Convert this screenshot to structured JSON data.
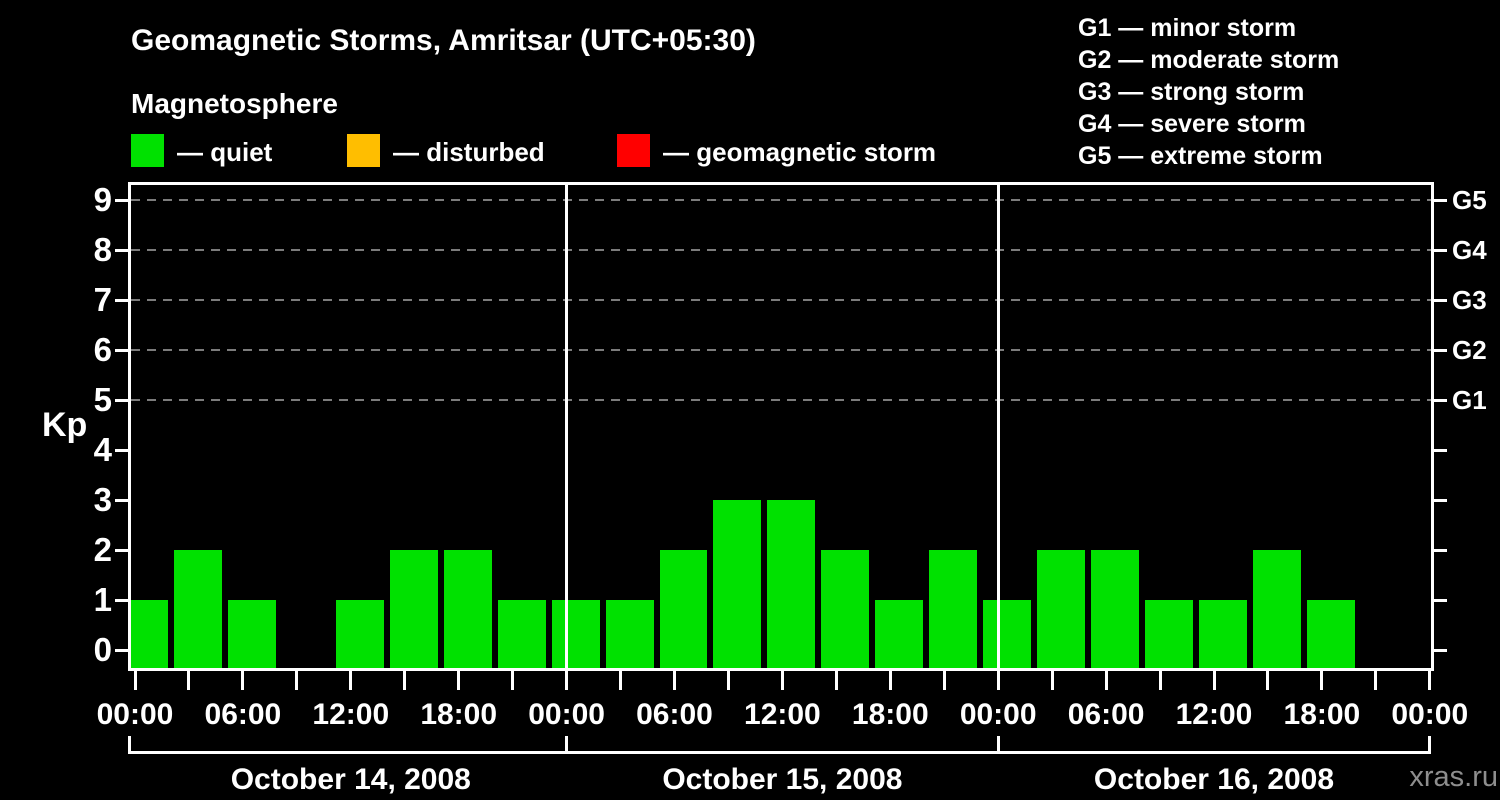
{
  "chart_data": {
    "type": "bar",
    "title": "Geomagnetic Storms, Amritsar (UTC+05:30)",
    "subtitle": "Magnetosphere",
    "ylabel": "Kp",
    "ylim": [
      0,
      9
    ],
    "x_range_hours": [
      0,
      72
    ],
    "x_minor_tick_hours": 3,
    "x_label_every_hours": 6,
    "x_tick_labels": [
      "00:00",
      "06:00",
      "12:00",
      "18:00",
      "00:00",
      "06:00",
      "12:00",
      "18:00",
      "00:00",
      "06:00",
      "12:00",
      "18:00",
      "00:00"
    ],
    "y_ticks": [
      0,
      1,
      2,
      3,
      4,
      5,
      6,
      7,
      8,
      9
    ],
    "grid_levels": [
      5,
      6,
      7,
      8,
      9
    ],
    "right_axis_labels": [
      {
        "kp": 5,
        "label": "G1"
      },
      {
        "kp": 6,
        "label": "G2"
      },
      {
        "kp": 7,
        "label": "G3"
      },
      {
        "kp": 8,
        "label": "G4"
      },
      {
        "kp": 9,
        "label": "G5"
      }
    ],
    "legend": [
      {
        "status": "quiet",
        "color": "#00e100",
        "label": "— quiet"
      },
      {
        "status": "disturbed",
        "color": "#ffbe00",
        "label": "— disturbed"
      },
      {
        "status": "storm",
        "color": "#ff0000",
        "label": "— geomagnetic storm"
      }
    ],
    "g_scale_legend": [
      "G1 — minor storm",
      "G2 — moderate storm",
      "G3 — strong storm",
      "G4 — severe storm",
      "G5 — extreme storm"
    ],
    "days": [
      {
        "label": "October 14, 2008"
      },
      {
        "label": "October 15, 2008"
      },
      {
        "label": "October 16, 2008"
      }
    ],
    "bars": [
      {
        "start_h": 0,
        "end_h": 2,
        "kp": 1,
        "status": "quiet"
      },
      {
        "start_h": 2,
        "end_h": 5,
        "kp": 2,
        "status": "quiet"
      },
      {
        "start_h": 5,
        "end_h": 8,
        "kp": 1,
        "status": "quiet"
      },
      {
        "start_h": 8,
        "end_h": 11,
        "kp": 0,
        "status": "quiet"
      },
      {
        "start_h": 11,
        "end_h": 14,
        "kp": 1,
        "status": "quiet"
      },
      {
        "start_h": 14,
        "end_h": 17,
        "kp": 2,
        "status": "quiet"
      },
      {
        "start_h": 17,
        "end_h": 20,
        "kp": 2,
        "status": "quiet"
      },
      {
        "start_h": 20,
        "end_h": 23,
        "kp": 1,
        "status": "quiet"
      },
      {
        "start_h": 23,
        "end_h": 26,
        "kp": 1,
        "status": "quiet"
      },
      {
        "start_h": 26,
        "end_h": 29,
        "kp": 1,
        "status": "quiet"
      },
      {
        "start_h": 29,
        "end_h": 32,
        "kp": 2,
        "status": "quiet"
      },
      {
        "start_h": 32,
        "end_h": 35,
        "kp": 3,
        "status": "quiet"
      },
      {
        "start_h": 35,
        "end_h": 38,
        "kp": 3,
        "status": "quiet"
      },
      {
        "start_h": 38,
        "end_h": 41,
        "kp": 2,
        "status": "quiet"
      },
      {
        "start_h": 41,
        "end_h": 44,
        "kp": 1,
        "status": "quiet"
      },
      {
        "start_h": 44,
        "end_h": 47,
        "kp": 2,
        "status": "quiet"
      },
      {
        "start_h": 47,
        "end_h": 50,
        "kp": 1,
        "status": "quiet"
      },
      {
        "start_h": 50,
        "end_h": 53,
        "kp": 2,
        "status": "quiet"
      },
      {
        "start_h": 53,
        "end_h": 56,
        "kp": 2,
        "status": "quiet"
      },
      {
        "start_h": 56,
        "end_h": 59,
        "kp": 1,
        "status": "quiet"
      },
      {
        "start_h": 59,
        "end_h": 62,
        "kp": 1,
        "status": "quiet"
      },
      {
        "start_h": 62,
        "end_h": 65,
        "kp": 2,
        "status": "quiet"
      },
      {
        "start_h": 65,
        "end_h": 68,
        "kp": 1,
        "status": "quiet"
      }
    ],
    "watermark": "xras.ru"
  }
}
